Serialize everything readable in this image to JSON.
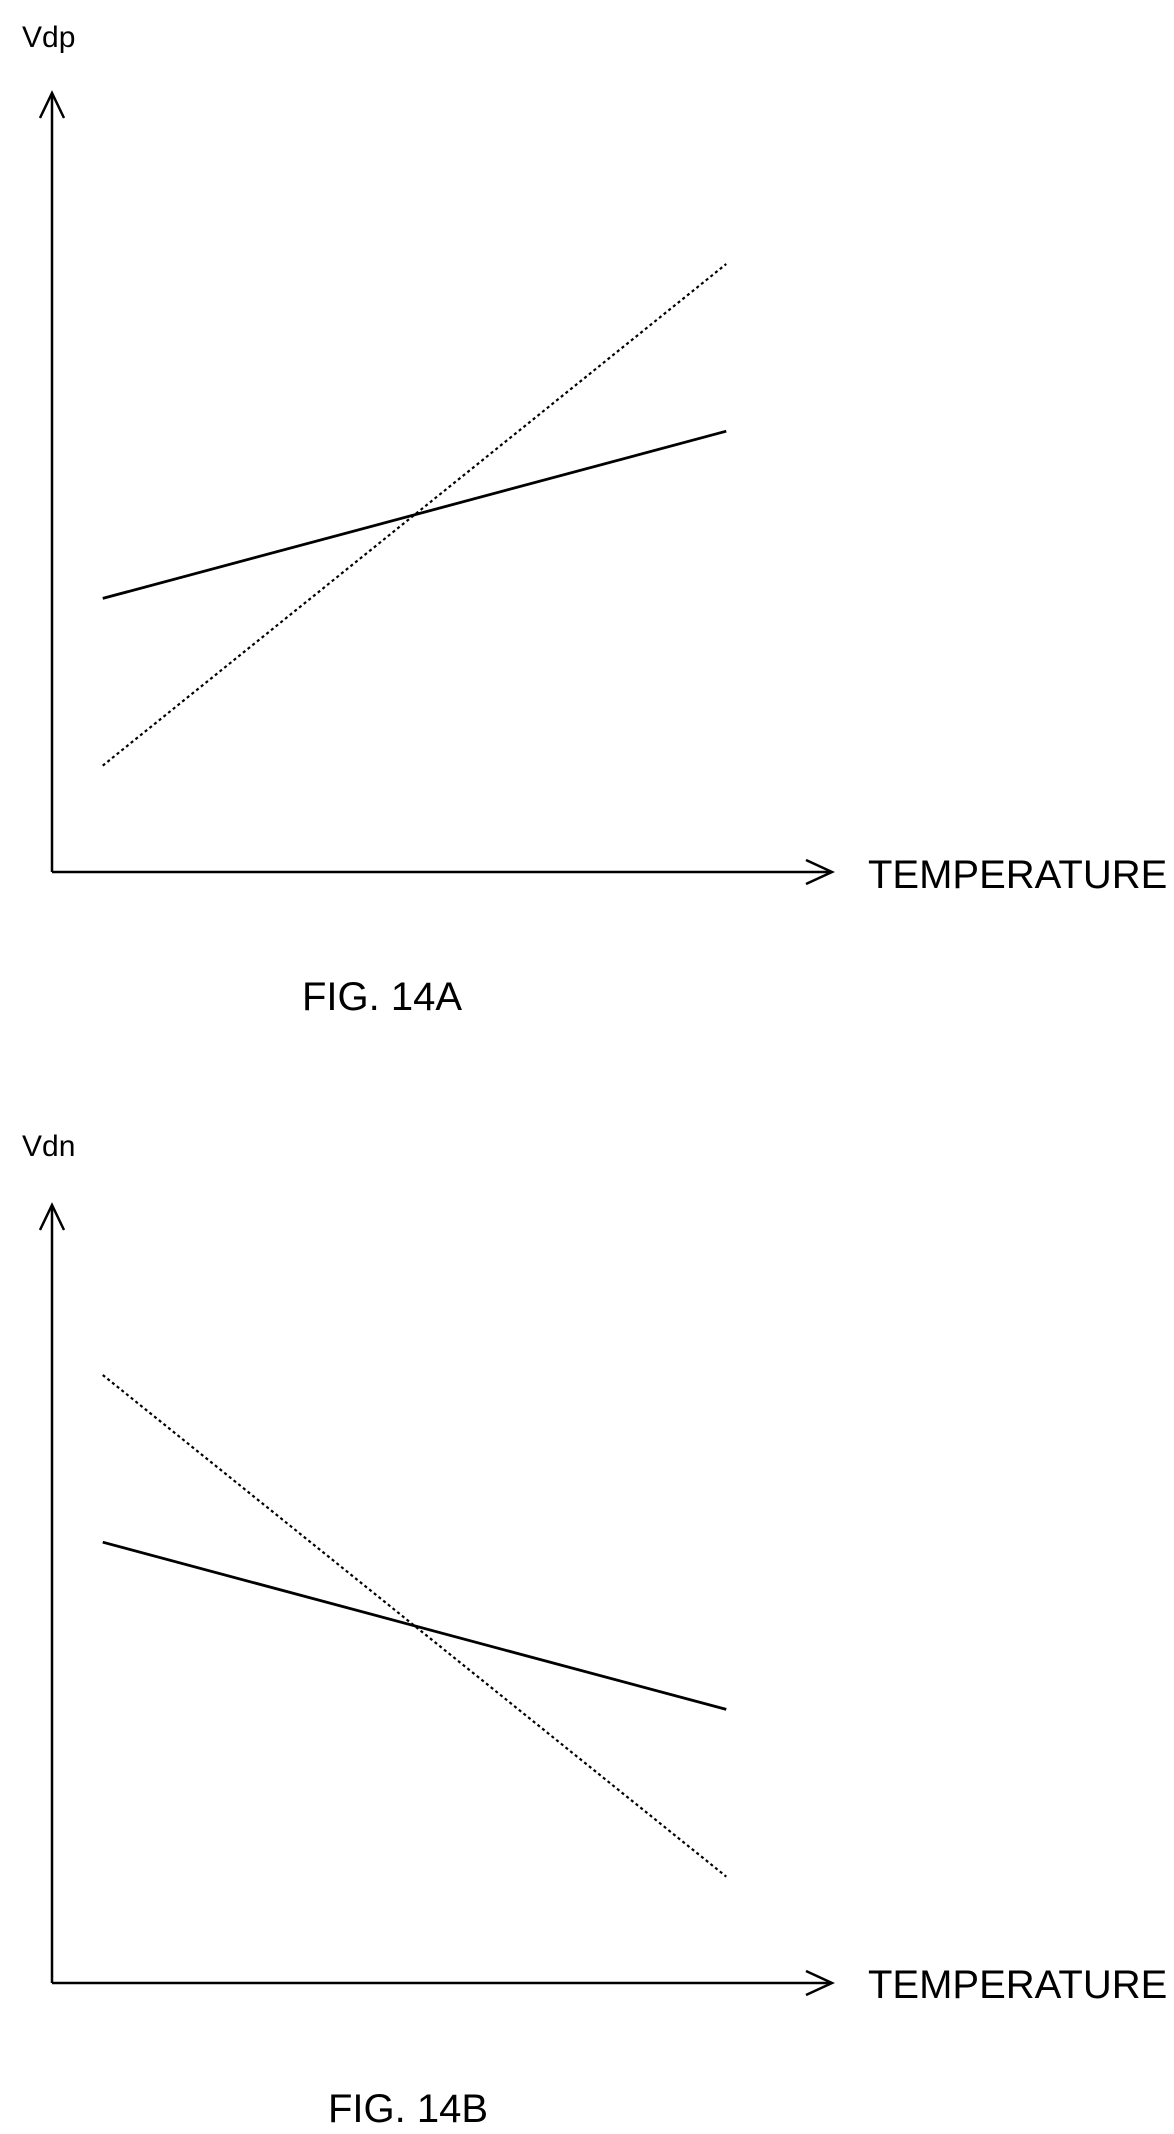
{
  "chart_data": [
    {
      "type": "line",
      "caption": "FIG. 14A",
      "ylabel": "Vdp",
      "xlabel": "TEMPERATURE",
      "xlim": [
        0,
        1
      ],
      "ylim": [
        0,
        1
      ],
      "grid": false,
      "ticks": false,
      "series": [
        {
          "style": "solid",
          "x": [
            0.07,
            0.93
          ],
          "y": [
            0.36,
            0.58
          ]
        },
        {
          "style": "dotted",
          "x": [
            0.07,
            0.93
          ],
          "y": [
            0.14,
            0.8
          ]
        }
      ]
    },
    {
      "type": "line",
      "caption": "FIG. 14B",
      "ylabel": "Vdn",
      "xlabel": "TEMPERATURE",
      "xlim": [
        0,
        1
      ],
      "ylim": [
        0,
        1
      ],
      "grid": false,
      "ticks": false,
      "series": [
        {
          "style": "solid",
          "x": [
            0.07,
            0.93
          ],
          "y": [
            0.58,
            0.36
          ]
        },
        {
          "style": "dotted",
          "x": [
            0.07,
            0.93
          ],
          "y": [
            0.8,
            0.14
          ]
        }
      ]
    }
  ]
}
